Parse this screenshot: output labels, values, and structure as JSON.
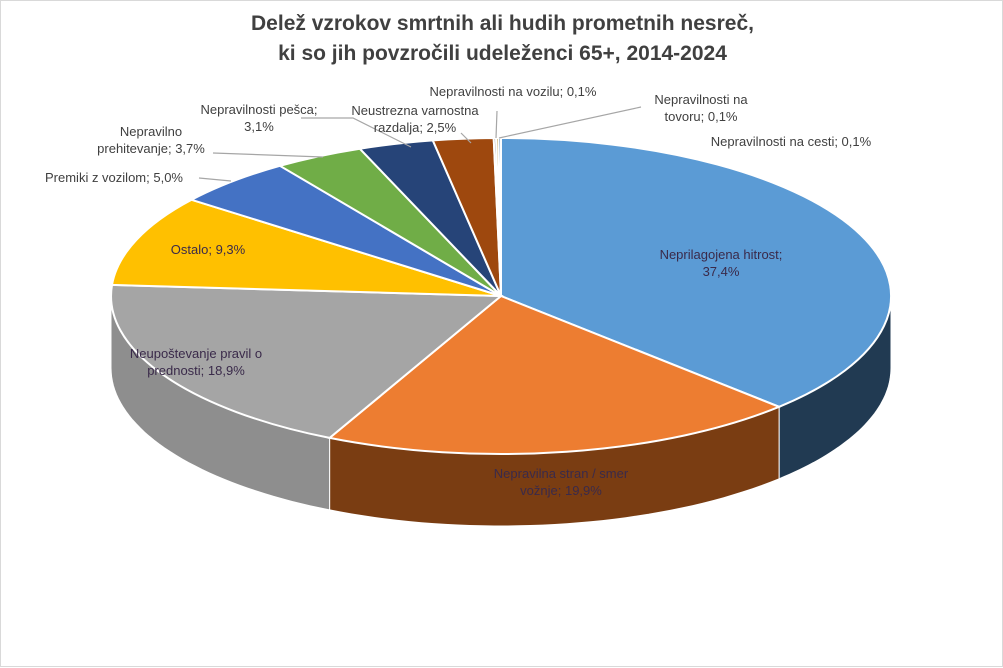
{
  "chart_data": {
    "type": "pie",
    "title_line1": "Delež vzrokov smrtnih ali hudih prometnih nesreč,",
    "title_line2": "ki so jih povzročili udeleženci 65+, 2014-2024",
    "slices": [
      {
        "label_line1": "Neprilagojena hitrost;",
        "label_line2": "37,4%",
        "value": 37.4,
        "color": "#5b9bd5",
        "side": "#213a52"
      },
      {
        "label_line1": "Nepravilna stran / smer",
        "label_line2": "vožnje; 19,9%",
        "value": 19.9,
        "color": "#ed7d31",
        "side": "#7a3d12"
      },
      {
        "label_line1": "Neupoštevanje pravil o",
        "label_line2": "prednosti; 18,9%",
        "value": 18.9,
        "color": "#a5a5a5",
        "side": "#8e8e8e"
      },
      {
        "label_line1": "Ostalo; 9,3%",
        "label_line2": "",
        "value": 9.3,
        "color": "#ffc000",
        "side": "#8a6a00"
      },
      {
        "label_line1": "Premiki z vozilom; 5,0%",
        "label_line2": "",
        "value": 5.0,
        "color": "#4472c4",
        "side": "#24406e"
      },
      {
        "label_line1": "Nepravilno",
        "label_line2": "prehitevanje; 3,7%",
        "value": 3.7,
        "color": "#70ad47",
        "side": "#3c5f25"
      },
      {
        "label_line1": "Nepravilnosti pešca;",
        "label_line2": "3,1%",
        "value": 3.1,
        "color": "#264478",
        "side": "#152642"
      },
      {
        "label_line1": "Neustrezna varnostna",
        "label_line2": "razdalja; 2,5%",
        "value": 2.5,
        "color": "#9e480e",
        "side": "#552707"
      },
      {
        "label_line1": "Nepravilnosti na vozilu; 0,1%",
        "label_line2": "",
        "value": 0.1,
        "color": "#636363",
        "side": "#3a3a3a"
      },
      {
        "label_line1": "Nepravilnosti na",
        "label_line2": "tovoru; 0,1%",
        "value": 0.1,
        "color": "#997300",
        "side": "#5a4400"
      },
      {
        "label_line1": "Nepravilnosti na cesti; 0,1%",
        "label_line2": "",
        "value": 0.1,
        "color": "#255e91",
        "side": "#123250"
      }
    ],
    "legend": "none",
    "style": "3d-pie"
  }
}
